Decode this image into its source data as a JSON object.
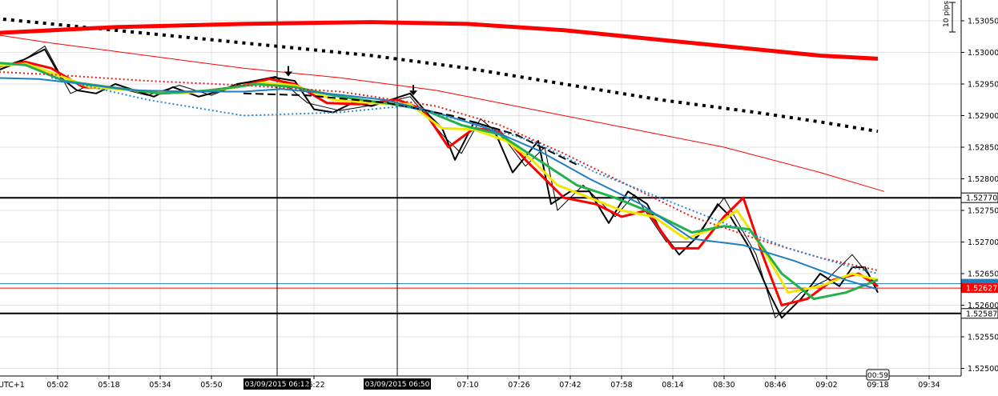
{
  "chart_data": {
    "type": "line",
    "title": "",
    "timezone_label": "UTC+1",
    "scale_label": "10 pips",
    "countdown": "00:59",
    "ylim": [
      1.5246,
      1.5309
    ],
    "y_ticks": [
      "1.53050",
      "1.53000",
      "1.52950",
      "1.52900",
      "1.52850",
      "1.52800",
      "1.52750",
      "1.52700",
      "1.52650",
      "1.52600",
      "1.52550",
      "1.52500"
    ],
    "x_ticks": [
      "05:02",
      "05:18",
      "05:34",
      "05:50",
      "06:22",
      "07:10",
      "07:26",
      "07:42",
      "07:58",
      "08:14",
      "08:30",
      "08:46",
      "09:02",
      "09:18",
      "09:34"
    ],
    "crosshair_times": [
      "03/09/2015 06:12",
      "03/09/2015 06:50"
    ],
    "horizontal_levels": [
      {
        "value": "1.52770",
        "price": 1.5277,
        "color": "#000000",
        "style": "thick"
      },
      {
        "value": "1.52587",
        "price": 1.52587,
        "color": "#000000",
        "style": "thick"
      }
    ],
    "current_price": {
      "value": "1.52627",
      "price": 1.52627,
      "color": "#ff0000"
    },
    "blue_level": {
      "price": 1.52634,
      "color": "#1f7fc0"
    },
    "arrows": [
      {
        "time": "06:14",
        "price": 1.52962
      },
      {
        "time": "06:53",
        "price": 1.52932
      }
    ],
    "colors": {
      "black": "#000000",
      "red": "#ff0000",
      "yellow": "#f2e600",
      "green": "#22b14c",
      "blue": "#1f7fc0",
      "dotted_blue": "#2b8ad0",
      "dotted_red": "#e02020",
      "dashed_black": "#000000"
    },
    "series": [
      {
        "color": "black",
        "width": 2,
        "dash": "",
        "points": [
          [
            "04:40",
            1.52965
          ],
          [
            "04:50",
            1.52985
          ],
          [
            "04:58",
            1.53005
          ],
          [
            "05:03",
            1.5296
          ],
          [
            "05:08",
            1.5294
          ],
          [
            "05:14",
            1.52935
          ],
          [
            "05:20",
            1.5295
          ],
          [
            "05:26",
            1.5294
          ],
          [
            "05:32",
            1.5293
          ],
          [
            "05:38",
            1.52945
          ],
          [
            "05:46",
            1.5293
          ],
          [
            "05:52",
            1.52938
          ],
          [
            "05:58",
            1.5295
          ],
          [
            "06:04",
            1.52955
          ],
          [
            "06:10",
            1.5296
          ],
          [
            "06:16",
            1.52955
          ],
          [
            "06:22",
            1.5291
          ],
          [
            "06:28",
            1.52905
          ],
          [
            "06:34",
            1.5292
          ],
          [
            "06:40",
            1.52915
          ],
          [
            "06:46",
            1.52925
          ],
          [
            "06:52",
            1.52935
          ],
          [
            "06:58",
            1.529
          ],
          [
            "07:02",
            1.5288
          ],
          [
            "07:06",
            1.5283
          ],
          [
            "07:12",
            1.5289
          ],
          [
            "07:18",
            1.5288
          ],
          [
            "07:24",
            1.5281
          ],
          [
            "07:32",
            1.5286
          ],
          [
            "07:36",
            1.5276
          ],
          [
            "07:42",
            1.5278
          ],
          [
            "07:48",
            1.5278
          ],
          [
            "07:54",
            1.5273
          ],
          [
            "08:00",
            1.5278
          ],
          [
            "08:06",
            1.5276
          ],
          [
            "08:10",
            1.5272
          ],
          [
            "08:16",
            1.5268
          ],
          [
            "08:22",
            1.5271
          ],
          [
            "08:28",
            1.5276
          ],
          [
            "08:32",
            1.5274
          ],
          [
            "08:38",
            1.5269
          ],
          [
            "08:44",
            1.5262
          ],
          [
            "08:48",
            1.5258
          ],
          [
            "08:54",
            1.5261
          ],
          [
            "09:00",
            1.5265
          ],
          [
            "09:06",
            1.5263
          ],
          [
            "09:10",
            1.5266
          ],
          [
            "09:14",
            1.5266
          ],
          [
            "09:18",
            1.5262
          ]
        ]
      },
      {
        "color": "black",
        "width": 1,
        "dash": "",
        "points": [
          [
            "04:40",
            1.5297
          ],
          [
            "04:52",
            1.5299
          ],
          [
            "04:58",
            1.5301
          ],
          [
            "05:06",
            1.52935
          ],
          [
            "05:12",
            1.52948
          ],
          [
            "05:22",
            1.52942
          ],
          [
            "05:30",
            1.52932
          ],
          [
            "05:40",
            1.52948
          ],
          [
            "05:50",
            1.52932
          ],
          [
            "06:00",
            1.52952
          ],
          [
            "06:10",
            1.52962
          ],
          [
            "06:20",
            1.5292
          ],
          [
            "06:30",
            1.52908
          ],
          [
            "06:42",
            1.52918
          ],
          [
            "06:52",
            1.5293
          ],
          [
            "07:02",
            1.5287
          ],
          [
            "07:08",
            1.5284
          ],
          [
            "07:14",
            1.52895
          ],
          [
            "07:22",
            1.5286
          ],
          [
            "07:28",
            1.5282
          ],
          [
            "07:34",
            1.5285
          ],
          [
            "07:38",
            1.5275
          ],
          [
            "07:46",
            1.5279
          ],
          [
            "07:56",
            1.5274
          ],
          [
            "08:02",
            1.52775
          ],
          [
            "08:12",
            1.527
          ],
          [
            "08:20",
            1.527
          ],
          [
            "08:30",
            1.5277
          ],
          [
            "08:40",
            1.5268
          ],
          [
            "08:46",
            1.5258
          ],
          [
            "08:54",
            1.5262
          ],
          [
            "09:02",
            1.5264
          ],
          [
            "09:10",
            1.5268
          ],
          [
            "09:18",
            1.5263
          ]
        ]
      },
      {
        "color": "red",
        "width": 3,
        "dash": "",
        "points": [
          [
            "04:40",
            1.52975
          ],
          [
            "04:52",
            1.52985
          ],
          [
            "05:00",
            1.52975
          ],
          [
            "05:10",
            1.52945
          ],
          [
            "05:22",
            1.52942
          ],
          [
            "05:34",
            1.52935
          ],
          [
            "05:46",
            1.52938
          ],
          [
            "05:58",
            1.52945
          ],
          [
            "06:08",
            1.52958
          ],
          [
            "06:16",
            1.5295
          ],
          [
            "06:26",
            1.5292
          ],
          [
            "06:36",
            1.52918
          ],
          [
            "06:48",
            1.52925
          ],
          [
            "06:56",
            1.5291
          ],
          [
            "07:04",
            1.5285
          ],
          [
            "07:12",
            1.5288
          ],
          [
            "07:20",
            1.52875
          ],
          [
            "07:28",
            1.5283
          ],
          [
            "07:34",
            1.528
          ],
          [
            "07:40",
            1.5277
          ],
          [
            "07:50",
            1.5276
          ],
          [
            "07:58",
            1.5274
          ],
          [
            "08:06",
            1.5275
          ],
          [
            "08:14",
            1.5269
          ],
          [
            "08:22",
            1.5269
          ],
          [
            "08:30",
            1.5274
          ],
          [
            "08:36",
            1.5277
          ],
          [
            "08:42",
            1.5268
          ],
          [
            "08:48",
            1.526
          ],
          [
            "08:56",
            1.5261
          ],
          [
            "09:04",
            1.5264
          ],
          [
            "09:12",
            1.5265
          ],
          [
            "09:18",
            1.5263
          ]
        ]
      },
      {
        "color": "yellow",
        "width": 3,
        "dash": "",
        "points": [
          [
            "04:40",
            1.52978
          ],
          [
            "04:52",
            1.52982
          ],
          [
            "05:00",
            1.52968
          ],
          [
            "05:12",
            1.52945
          ],
          [
            "05:26",
            1.5294
          ],
          [
            "05:40",
            1.52935
          ],
          [
            "05:54",
            1.52942
          ],
          [
            "06:06",
            1.52952
          ],
          [
            "06:16",
            1.52948
          ],
          [
            "06:28",
            1.52925
          ],
          [
            "06:40",
            1.5292
          ],
          [
            "06:52",
            1.52918
          ],
          [
            "07:02",
            1.5288
          ],
          [
            "07:12",
            1.52878
          ],
          [
            "07:22",
            1.5286
          ],
          [
            "07:30",
            1.5283
          ],
          [
            "07:38",
            1.5279
          ],
          [
            "07:48",
            1.5277
          ],
          [
            "07:58",
            1.5275
          ],
          [
            "08:08",
            1.5274
          ],
          [
            "08:18",
            1.52705
          ],
          [
            "08:26",
            1.5272
          ],
          [
            "08:34",
            1.5275
          ],
          [
            "08:42",
            1.5269
          ],
          [
            "08:50",
            1.5262
          ],
          [
            "09:00",
            1.5263
          ],
          [
            "09:10",
            1.5265
          ],
          [
            "09:18",
            1.5264
          ]
        ]
      },
      {
        "color": "green",
        "width": 3,
        "dash": "",
        "points": [
          [
            "04:40",
            1.52985
          ],
          [
            "04:52",
            1.5298
          ],
          [
            "05:04",
            1.52955
          ],
          [
            "05:18",
            1.52945
          ],
          [
            "05:34",
            1.52935
          ],
          [
            "05:50",
            1.5294
          ],
          [
            "06:04",
            1.5295
          ],
          [
            "06:16",
            1.52945
          ],
          [
            "06:30",
            1.5293
          ],
          [
            "06:44",
            1.5292
          ],
          [
            "06:56",
            1.5291
          ],
          [
            "07:08",
            1.52885
          ],
          [
            "07:20",
            1.5287
          ],
          [
            "07:32",
            1.5283
          ],
          [
            "07:44",
            1.5279
          ],
          [
            "07:56",
            1.5277
          ],
          [
            "08:08",
            1.52745
          ],
          [
            "08:20",
            1.52715
          ],
          [
            "08:30",
            1.52725
          ],
          [
            "08:38",
            1.5272
          ],
          [
            "08:48",
            1.5265
          ],
          [
            "08:58",
            1.5261
          ],
          [
            "09:08",
            1.5262
          ],
          [
            "09:18",
            1.5264
          ]
        ]
      },
      {
        "color": "blue",
        "width": 2,
        "dash": "",
        "points": [
          [
            "04:40",
            1.5296
          ],
          [
            "04:56",
            1.52958
          ],
          [
            "05:10",
            1.5295
          ],
          [
            "05:26",
            1.5294
          ],
          [
            "05:44",
            1.52938
          ],
          [
            "06:00",
            1.52938
          ],
          [
            "06:12",
            1.52942
          ],
          [
            "06:26",
            1.52935
          ],
          [
            "06:44",
            1.52925
          ],
          [
            "07:00",
            1.52905
          ],
          [
            "07:16",
            1.5288
          ],
          [
            "07:32",
            1.52845
          ],
          [
            "07:48",
            1.528
          ],
          [
            "08:04",
            1.5276
          ],
          [
            "08:20",
            1.52705
          ],
          [
            "08:36",
            1.52695
          ],
          [
            "08:52",
            1.5267
          ],
          [
            "09:08",
            1.5264
          ],
          [
            "09:18",
            1.52625
          ]
        ]
      },
      {
        "color": "dashed_black",
        "width": 2,
        "dash": "10,5",
        "points": [
          [
            "06:00",
            1.52935
          ],
          [
            "06:20",
            1.52932
          ],
          [
            "06:45",
            1.5292
          ],
          [
            "07:05",
            1.529
          ],
          [
            "07:25",
            1.5287
          ],
          [
            "07:45",
            1.5282
          ]
        ]
      },
      {
        "color": "dotted_red",
        "width": 2,
        "dash": "2,3",
        "points": [
          [
            "04:40",
            1.5297
          ],
          [
            "05:00",
            1.52965
          ],
          [
            "05:30",
            1.52955
          ],
          [
            "06:00",
            1.52948
          ],
          [
            "06:30",
            1.52938
          ],
          [
            "07:00",
            1.52915
          ],
          [
            "07:20",
            1.52885
          ],
          [
            "07:40",
            1.5284
          ],
          [
            "08:00",
            1.5279
          ],
          [
            "08:20",
            1.5274
          ],
          [
            "08:40",
            1.52705
          ],
          [
            "09:00",
            1.52675
          ],
          [
            "09:18",
            1.52655
          ]
        ]
      },
      {
        "color": "dotted_blue",
        "width": 2,
        "dash": "2,3",
        "points": [
          [
            "05:00",
            1.5296
          ],
          [
            "05:30",
            1.52925
          ],
          [
            "06:00",
            1.529
          ],
          [
            "06:30",
            1.52905
          ],
          [
            "06:50",
            1.52915
          ],
          [
            "07:10",
            1.5289
          ],
          [
            "07:30",
            1.5286
          ],
          [
            "07:50",
            1.5281
          ],
          [
            "08:10",
            1.5277
          ],
          [
            "08:30",
            1.5273
          ],
          [
            "08:50",
            1.5269
          ],
          [
            "09:10",
            1.5266
          ],
          [
            "09:18",
            1.5265
          ]
        ]
      },
      {
        "color": "red",
        "width": 1,
        "dash": "",
        "points": [
          [
            "04:40",
            1.5303
          ],
          [
            "05:00",
            1.53015
          ],
          [
            "05:30",
            1.52995
          ],
          [
            "06:00",
            1.52975
          ],
          [
            "06:30",
            1.5296
          ],
          [
            "07:00",
            1.5294
          ],
          [
            "07:30",
            1.5291
          ],
          [
            "08:00",
            1.5288
          ],
          [
            "08:30",
            1.5285
          ],
          [
            "09:00",
            1.5281
          ],
          [
            "09:20",
            1.5278
          ]
        ]
      },
      {
        "color": "black",
        "width": 4,
        "dash": "4,6",
        "points": [
          [
            "04:40",
            1.53055
          ],
          [
            "05:10",
            1.5304
          ],
          [
            "05:40",
            1.53025
          ],
          [
            "06:10",
            1.5301
          ],
          [
            "06:40",
            1.52995
          ],
          [
            "07:10",
            1.52975
          ],
          [
            "07:40",
            1.5295
          ],
          [
            "08:10",
            1.52925
          ],
          [
            "08:40",
            1.52905
          ],
          [
            "09:00",
            1.5289
          ],
          [
            "09:18",
            1.52875
          ]
        ]
      },
      {
        "color": "red",
        "width": 5,
        "dash": "",
        "points": [
          [
            "04:40",
            1.5303
          ],
          [
            "05:20",
            1.5304
          ],
          [
            "06:00",
            1.53045
          ],
          [
            "06:40",
            1.53048
          ],
          [
            "07:10",
            1.53045
          ],
          [
            "07:40",
            1.53035
          ],
          [
            "08:10",
            1.5302
          ],
          [
            "08:40",
            1.53005
          ],
          [
            "09:00",
            1.52995
          ],
          [
            "09:18",
            1.5299
          ]
        ]
      }
    ]
  }
}
